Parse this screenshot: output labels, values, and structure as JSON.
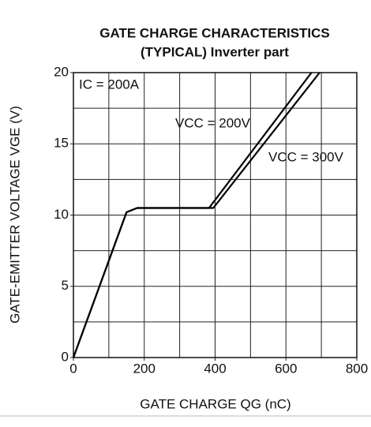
{
  "chart_data": {
    "type": "line",
    "title": "GATE CHARGE CHARACTERISTICS",
    "subtitle": "(TYPICAL) Inverter part",
    "x_label": "GATE CHARGE  QG (nC)",
    "y_label": "GATE-EMITTER VOLTAGE  VGE (V)",
    "annotations": [
      "IC = 200A",
      "VCC = 200V",
      "VCC = 300V"
    ],
    "xlim": [
      0,
      800
    ],
    "ylim": [
      0,
      20
    ],
    "xticks": [
      0,
      200,
      400,
      600,
      800
    ],
    "yticks": [
      0,
      5,
      10,
      15,
      20
    ],
    "xgrid": [
      100,
      200,
      300,
      400,
      500,
      600,
      700
    ],
    "ygrid": [
      2.5,
      5,
      7.5,
      10,
      12.5,
      15,
      17.5
    ],
    "grid": true,
    "series": [
      {
        "name": "VCC = 200V",
        "color": "#000000",
        "x": [
          0,
          150,
          180,
          383,
          672
        ],
        "values": [
          0,
          10.2,
          10.5,
          10.5,
          20
        ]
      },
      {
        "name": "VCC = 300V",
        "color": "#000000",
        "x": [
          0,
          150,
          180,
          395,
          695
        ],
        "values": [
          0,
          10.2,
          10.5,
          10.5,
          20
        ]
      }
    ]
  }
}
